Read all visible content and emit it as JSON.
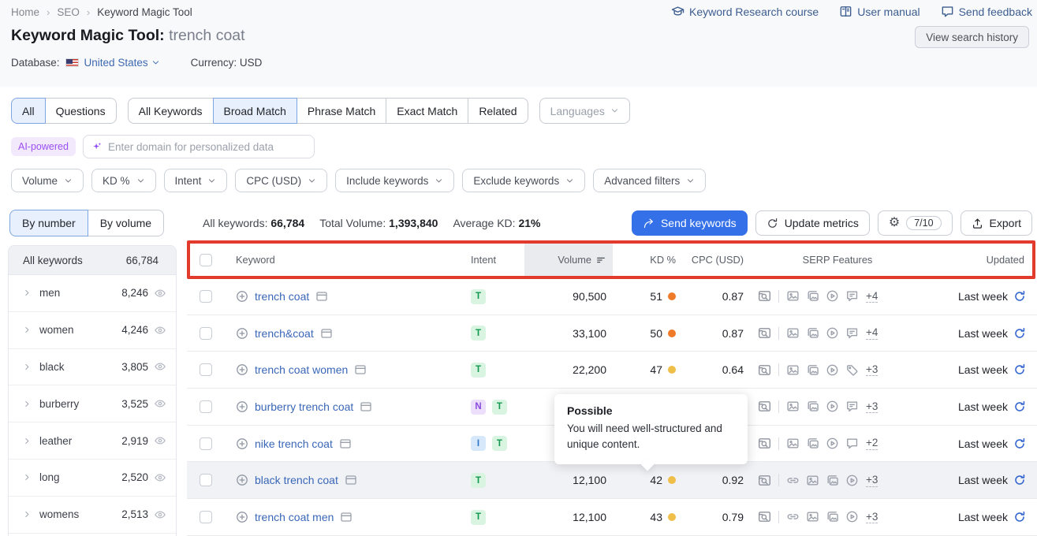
{
  "breadcrumb": {
    "items": [
      "Home",
      "SEO",
      "Keyword Magic Tool"
    ]
  },
  "header": {
    "title": "Keyword Magic Tool:",
    "query": "trench coat",
    "links": [
      {
        "icon": "graduation-cap-icon",
        "label": "Keyword Research course"
      },
      {
        "icon": "book-icon",
        "label": "User manual"
      },
      {
        "icon": "chat-icon",
        "label": "Send feedback"
      }
    ],
    "view_history_label": "View search history",
    "database_label": "Database:",
    "database_value": "United States",
    "currency_label": "Currency: USD"
  },
  "tabs": {
    "group1": [
      {
        "label": "All"
      },
      {
        "label": "Questions"
      }
    ],
    "group2": [
      {
        "label": "All Keywords"
      },
      {
        "label": "Broad Match"
      },
      {
        "label": "Phrase Match"
      },
      {
        "label": "Exact Match"
      },
      {
        "label": "Related"
      }
    ],
    "selected": [
      "All",
      "Broad Match"
    ],
    "languages_label": "Languages"
  },
  "ai_bar": {
    "badge": "AI-powered",
    "placeholder": "Enter domain for personalized data"
  },
  "filters": {
    "items": [
      "Volume",
      "KD %",
      "Intent",
      "CPC (USD)",
      "Include keywords",
      "Exclude keywords",
      "Advanced filters"
    ]
  },
  "sidebar": {
    "toggle": {
      "by_number": "By number",
      "by_volume": "By volume",
      "selected": "By number"
    },
    "all_row": {
      "label": "All keywords",
      "count": "66,784"
    },
    "groups": [
      {
        "label": "men",
        "count": "8,246"
      },
      {
        "label": "women",
        "count": "4,246"
      },
      {
        "label": "black",
        "count": "3,805"
      },
      {
        "label": "burberry",
        "count": "3,525"
      },
      {
        "label": "leather",
        "count": "2,919"
      },
      {
        "label": "long",
        "count": "2,520"
      },
      {
        "label": "womens",
        "count": "2,513"
      }
    ]
  },
  "toolbar": {
    "stats": [
      {
        "label": "All keywords:",
        "value": "66,784"
      },
      {
        "label": "Total Volume:",
        "value": "1,393,840"
      },
      {
        "label": "Average KD:",
        "value": "21%"
      }
    ],
    "send_keywords_label": "Send keywords",
    "update_metrics_label": "Update metrics",
    "limit_badge": "7/10",
    "export_label": "Export"
  },
  "table": {
    "headers": {
      "keyword": "Keyword",
      "intent": "Intent",
      "volume": "Volume",
      "kd": "KD %",
      "cpc": "CPC (USD)",
      "serp": "SERP Features",
      "updated": "Updated"
    },
    "rows": [
      {
        "keyword": "trench coat",
        "intents": [
          "T"
        ],
        "volume": "90,500",
        "kd": "51",
        "kd_color": "#ef7b28",
        "cpc": "0.87",
        "serp_icons": [
          "image",
          "images",
          "video",
          "review"
        ],
        "serp_more": "+4",
        "updated": "Last week"
      },
      {
        "keyword": "trench&coat",
        "intents": [
          "T"
        ],
        "volume": "33,100",
        "kd": "50",
        "kd_color": "#ef7b28",
        "cpc": "0.87",
        "serp_icons": [
          "image",
          "images",
          "video",
          "review"
        ],
        "serp_more": "+4",
        "updated": "Last week"
      },
      {
        "keyword": "trench coat women",
        "intents": [
          "T"
        ],
        "volume": "22,200",
        "kd": "47",
        "kd_color": "#f0bf4a",
        "cpc": "0.64",
        "serp_icons": [
          "image",
          "images",
          "video",
          "tag"
        ],
        "serp_more": "+3",
        "updated": "Last week"
      },
      {
        "keyword": "burberry trench coat",
        "intents": [
          "N",
          "T"
        ],
        "volume": "",
        "kd": "",
        "kd_color": "transparent",
        "cpc": "",
        "serp_icons": [
          "image",
          "images",
          "video",
          "review"
        ],
        "serp_more": "+3",
        "updated": "Last week"
      },
      {
        "keyword": "nike trench coat",
        "intents": [
          "I",
          "T"
        ],
        "volume": "",
        "kd": "",
        "kd_color": "transparent",
        "cpc": "",
        "serp_icons": [
          "image",
          "images",
          "video",
          "comment"
        ],
        "serp_more": "+2",
        "updated": "Last week"
      },
      {
        "keyword": "black trench coat",
        "intents": [
          "T"
        ],
        "volume": "12,100",
        "kd": "42",
        "kd_color": "#f0bf4a",
        "cpc": "0.92",
        "serp_icons": [
          "link",
          "image",
          "images",
          "video"
        ],
        "serp_more": "+3",
        "updated": "Last week"
      },
      {
        "keyword": "trench coat men",
        "intents": [
          "T"
        ],
        "volume": "12,100",
        "kd": "43",
        "kd_color": "#f0bf4a",
        "cpc": "0.79",
        "serp_icons": [
          "link",
          "image",
          "images",
          "video"
        ],
        "serp_more": "+3",
        "updated": "Last week"
      }
    ]
  },
  "tooltip": {
    "title": "Possible",
    "text": "You will need well-structured and unique content."
  },
  "colors": {
    "annotation_red": "#e23b2e",
    "accent_blue": "#3470e8",
    "link_blue": "#3a67b8",
    "kd_orange": "#ef7b28",
    "kd_amber": "#f0bf4a",
    "intent_t_bg": "#d9f5e2",
    "intent_t_fg": "#13984f",
    "intent_n_bg": "#ecdffb",
    "intent_n_fg": "#8a4bdb",
    "intent_i_bg": "#d7e8fa",
    "intent_i_fg": "#2f77c9"
  }
}
